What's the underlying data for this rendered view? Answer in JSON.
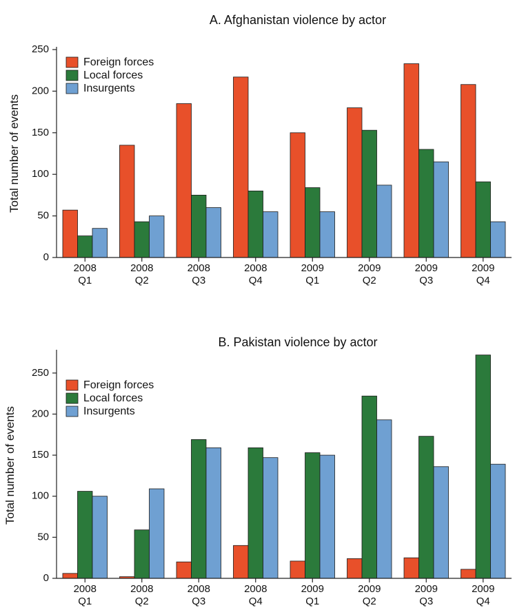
{
  "colors": {
    "foreign": "#e8502a",
    "local": "#2b7a3b",
    "insurgents": "#6fa0d2",
    "axis": "#222222"
  },
  "chart_data": [
    {
      "type": "bar",
      "title": "A. Afghanistan violence by actor",
      "ylabel": "Total number of events",
      "xlabel": "",
      "ylim": [
        0,
        250
      ],
      "yticks": [
        0,
        50,
        100,
        150,
        200,
        250
      ],
      "categories": [
        {
          "year": "2008",
          "quarter": "Q1"
        },
        {
          "year": "2008",
          "quarter": "Q2"
        },
        {
          "year": "2008",
          "quarter": "Q3"
        },
        {
          "year": "2008",
          "quarter": "Q4"
        },
        {
          "year": "2009",
          "quarter": "Q1"
        },
        {
          "year": "2009",
          "quarter": "Q2"
        },
        {
          "year": "2009",
          "quarter": "Q3"
        },
        {
          "year": "2009",
          "quarter": "Q4"
        }
      ],
      "legend_position": "top-left",
      "grid": false,
      "series": [
        {
          "name": "Foreign forces",
          "color_key": "foreign",
          "values": [
            57,
            135,
            185,
            217,
            150,
            180,
            233,
            208
          ]
        },
        {
          "name": "Local forces",
          "color_key": "local",
          "values": [
            26,
            43,
            75,
            80,
            84,
            153,
            130,
            91
          ]
        },
        {
          "name": "Insurgents",
          "color_key": "insurgents",
          "values": [
            35,
            50,
            60,
            55,
            55,
            87,
            115,
            43
          ]
        }
      ]
    },
    {
      "type": "bar",
      "title": "B. Pakistan violence by actor",
      "ylabel": "Total number of events",
      "xlabel": "",
      "ylim": [
        0,
        275
      ],
      "yticks": [
        0,
        50,
        100,
        150,
        200,
        250
      ],
      "categories": [
        {
          "year": "2008",
          "quarter": "Q1"
        },
        {
          "year": "2008",
          "quarter": "Q2"
        },
        {
          "year": "2008",
          "quarter": "Q3"
        },
        {
          "year": "2008",
          "quarter": "Q4"
        },
        {
          "year": "2009",
          "quarter": "Q1"
        },
        {
          "year": "2009",
          "quarter": "Q2"
        },
        {
          "year": "2009",
          "quarter": "Q3"
        },
        {
          "year": "2009",
          "quarter": "Q4"
        }
      ],
      "legend_position": "top-left",
      "grid": false,
      "series": [
        {
          "name": "Foreign forces",
          "color_key": "foreign",
          "values": [
            6,
            2,
            20,
            40,
            21,
            24,
            25,
            11
          ]
        },
        {
          "name": "Local forces",
          "color_key": "local",
          "values": [
            106,
            59,
            169,
            159,
            153,
            222,
            173,
            272
          ]
        },
        {
          "name": "Insurgents",
          "color_key": "insurgents",
          "values": [
            100,
            109,
            159,
            147,
            150,
            193,
            136,
            139
          ]
        }
      ]
    }
  ]
}
